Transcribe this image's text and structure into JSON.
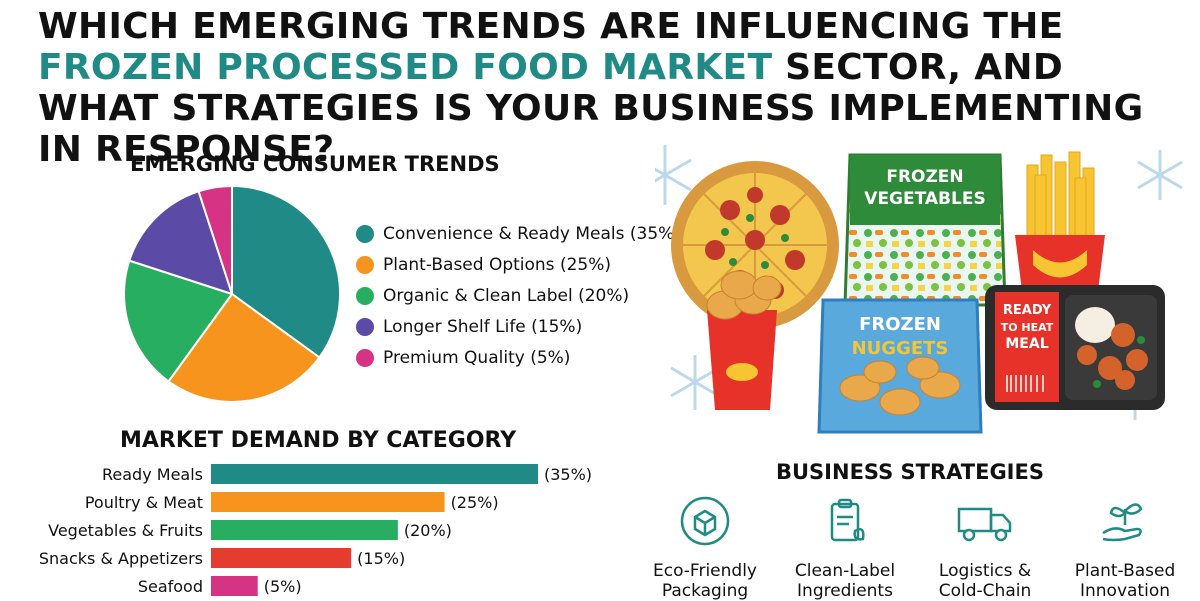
{
  "headline": {
    "part1": "WHICH EMERGING TRENDS ARE INFLUENCING THE ",
    "accent": "FROZEN PROCESSED FOOD MARKET",
    "part2": " SECTOR, AND WHAT STRATEGIES IS YOUR BUSINESS IMPLEMENTING IN RESPONSE?"
  },
  "colors": {
    "teal": "#1f8a86",
    "orange": "#f7941d",
    "green": "#27ae60",
    "purple": "#5b4aa6",
    "magenta": "#d63384",
    "red": "#e53c2e"
  },
  "illustration": {
    "vegetables_bag": [
      "FROZEN",
      "VEGETABLES"
    ],
    "nuggets_bag": [
      "FROZEN",
      "NUGGETS"
    ],
    "meal_box": [
      "READY",
      "TO HEAT",
      "MEAL"
    ]
  },
  "strategies": {
    "title": "BUSINESS STRATEGIES",
    "items": [
      {
        "icon": "recycle-box-icon",
        "line1": "Eco-Friendly",
        "line2": "Packaging"
      },
      {
        "icon": "clipboard-leaf-icon",
        "line1": "Clean-Label",
        "line2": "Ingredients"
      },
      {
        "icon": "delivery-truck-icon",
        "line1": "Logistics &",
        "line2": "Cold-Chain"
      },
      {
        "icon": "hand-sprout-icon",
        "line1": "Plant-Based",
        "line2": "Innovation"
      }
    ]
  },
  "chart_data": [
    {
      "type": "pie",
      "title": "EMERGING CONSUMER TRENDS",
      "legend_position": "right",
      "slices": [
        {
          "label": "Convenience & Ready Meals (35%)",
          "value": 35,
          "color": "#1f8a86"
        },
        {
          "label": "Plant-Based Options (25%)",
          "value": 25,
          "color": "#f7941d"
        },
        {
          "label": "Organic & Clean Label (20%)",
          "value": 20,
          "color": "#27ae60"
        },
        {
          "label": "Longer Shelf Life (15%)",
          "value": 15,
          "color": "#5b4aa6"
        },
        {
          "label": "Premium Quality (5%)",
          "value": 5,
          "color": "#d63384"
        }
      ]
    },
    {
      "type": "bar",
      "orientation": "horizontal",
      "title": "MARKET DEMAND BY CATEGORY",
      "categories": [
        "Ready Meals",
        "Poultry & Meat",
        "Vegetables & Fruits",
        "Snacks & Appetizers",
        "Seafood"
      ],
      "values": [
        35,
        25,
        20,
        15,
        5
      ],
      "value_labels": [
        "(35%)",
        "(25%)",
        "(20%)",
        "(15%)",
        "(5%)"
      ],
      "colors": [
        "#1f8a86",
        "#f7941d",
        "#27ae60",
        "#e53c2e",
        "#d63384"
      ],
      "xlim": [
        0,
        35
      ],
      "grid": false
    }
  ]
}
